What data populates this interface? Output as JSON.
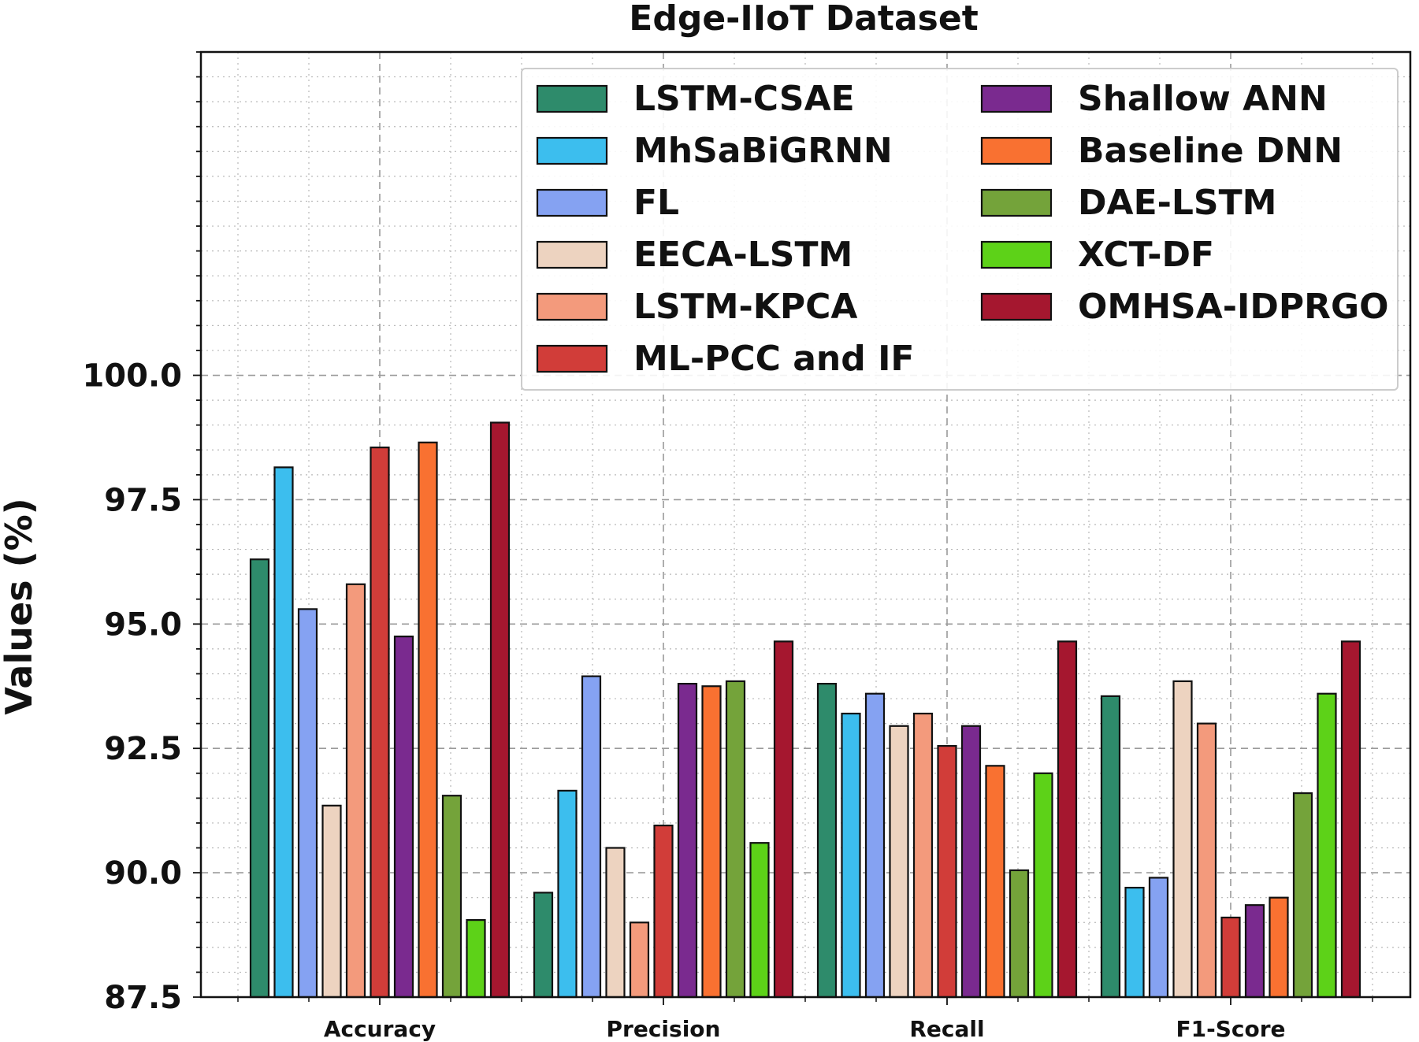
{
  "chart_data": {
    "type": "bar",
    "title": "Edge-IIoT Dataset",
    "xlabel": "",
    "ylabel": "Values (%)",
    "ylim": [
      87.5,
      106.5
    ],
    "yticks": [
      "87.5",
      "90.0",
      "92.5",
      "95.0",
      "97.5",
      "100.0"
    ],
    "categories": [
      "Accuracy",
      "Precision",
      "Recall",
      "F1-Score"
    ],
    "legend_position": "top-right",
    "series": [
      {
        "name": "LSTM-CSAE",
        "color": "#2e8b6b",
        "values": [
          96.3,
          89.6,
          93.8,
          93.55
        ]
      },
      {
        "name": "MhSaBiGRNN",
        "color": "#3cbeee",
        "values": [
          98.15,
          91.65,
          93.2,
          89.7
        ]
      },
      {
        "name": "FL",
        "color": "#85a2f2",
        "values": [
          95.3,
          93.95,
          93.6,
          89.9
        ]
      },
      {
        "name": "EECA-LSTM",
        "color": "#edd3c0",
        "values": [
          91.35,
          90.5,
          92.95,
          93.85
        ]
      },
      {
        "name": "LSTM-KPCA",
        "color": "#f39a7c",
        "values": [
          95.8,
          89.0,
          93.2,
          93.0
        ]
      },
      {
        "name": "ML-PCC and IF",
        "color": "#d13d39",
        "values": [
          98.55,
          90.95,
          92.55,
          89.1
        ]
      },
      {
        "name": "Shallow ANN",
        "color": "#7a2a8f",
        "values": [
          94.75,
          93.8,
          92.95,
          89.35
        ]
      },
      {
        "name": "Baseline DNN",
        "color": "#f97131",
        "values": [
          98.65,
          93.75,
          92.15,
          89.5
        ]
      },
      {
        "name": "DAE-LSTM",
        "color": "#74a33a",
        "values": [
          91.55,
          93.85,
          90.05,
          91.6
        ]
      },
      {
        "name": "XCT-DF",
        "color": "#5dd218",
        "values": [
          89.05,
          90.6,
          92.0,
          93.6
        ]
      },
      {
        "name": "OMHSA-IDPRGO",
        "color": "#a5172f",
        "values": [
          99.05,
          94.65,
          94.65,
          94.65
        ]
      }
    ]
  }
}
